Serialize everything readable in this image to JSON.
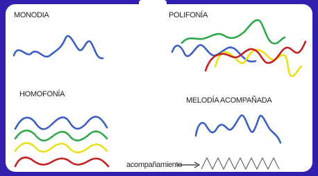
{
  "labels": {
    "monodia": "MONODIA",
    "polifonia": "POLIFONÍA",
    "homofonia": "HOMOFONÍA",
    "melodia": "MELODÍA ACOMPAÑADA",
    "acompanamiento": "acompañamiento"
  }
}
